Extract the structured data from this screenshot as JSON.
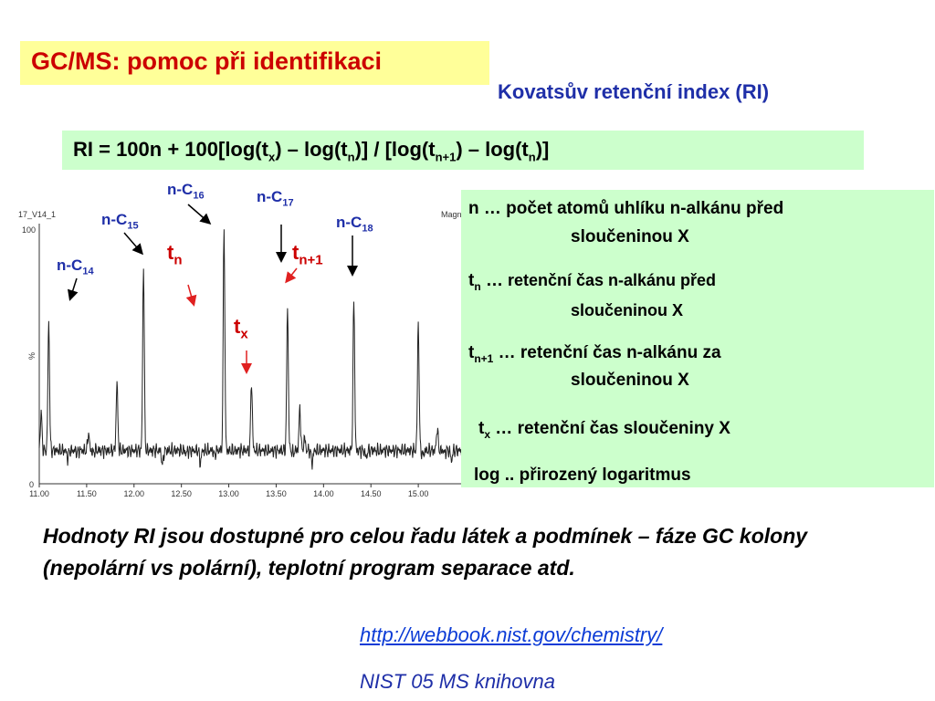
{
  "title": "GC/MS: pomoc při identifikaci",
  "subtitle": "Kovatsův retenční index (RI)",
  "formula": {
    "p1": "RI = 100n + 100[log(t",
    "s1": "x",
    "p2": ") – log(t",
    "s2": "n",
    "p3": ")] / [log(t",
    "s3": "n+1",
    "p4": ") – log(t",
    "s4": "n",
    "p5": ")]"
  },
  "legend": {
    "n_line1": "n … počet atomů uhlíku n-alkánu před",
    "n_line2": "sloučeninou X",
    "tn_t": "t",
    "tn_sub": "n",
    "tn_dots": " …",
    "tn_line1": " retenční čas  n-alkánu před",
    "tn_line2": "sloučeninou X",
    "tn1_t": "t",
    "tn1_sub": "n+1",
    "tn1_line1": " … retenční čas  n-alkánu za",
    "tn1_line2": "sloučeninou X",
    "tx_t": "t",
    "tx_sub": "x",
    "tx_line": " … retenční čas  sloučeniny X",
    "log_line": "log .. přirozený logaritmus"
  },
  "labels": {
    "c14": {
      "p": "n-C",
      "s": "14"
    },
    "c15": {
      "p": "n-C",
      "s": "15"
    },
    "c16": {
      "p": "n-C",
      "s": "16"
    },
    "c17": {
      "p": "n-C",
      "s": "17"
    },
    "c18": {
      "p": "n-C",
      "s": "18"
    },
    "tn": {
      "p": "t",
      "s": "n"
    },
    "tn1": {
      "p": "t",
      "s": "n+1"
    },
    "tx": {
      "p": "t",
      "s": "x"
    }
  },
  "chart_data": {
    "type": "line",
    "title": "17_V14_1",
    "corner_label": "Magn",
    "ylabel": "%",
    "xlim": [
      11.0,
      15.5
    ],
    "ylim": [
      0,
      100
    ],
    "y_ticks": [
      "100",
      "0"
    ],
    "x_ticks": [
      "11.00",
      "11.50",
      "12.00",
      "12.50",
      "13.00",
      "13.50",
      "14.00",
      "14.50",
      "15.00"
    ],
    "baseline": 13,
    "peaks": [
      {
        "x": 11.02,
        "h": 28
      },
      {
        "x": 11.1,
        "h": 64
      },
      {
        "x": 11.3,
        "h": 10
      },
      {
        "x": 11.4,
        "h": 12
      },
      {
        "x": 11.52,
        "h": 20
      },
      {
        "x": 11.57,
        "h": 12
      },
      {
        "x": 11.82,
        "h": 40
      },
      {
        "x": 12.1,
        "h": 85
      },
      {
        "x": 12.3,
        "h": 7
      },
      {
        "x": 12.55,
        "h": 12
      },
      {
        "x": 12.7,
        "h": 8
      },
      {
        "x": 12.85,
        "h": 11
      },
      {
        "x": 12.95,
        "h": 100
      },
      {
        "x": 13.24,
        "h": 40
      },
      {
        "x": 13.62,
        "h": 70
      },
      {
        "x": 13.68,
        "h": 12
      },
      {
        "x": 13.75,
        "h": 30
      },
      {
        "x": 13.8,
        "h": 18
      },
      {
        "x": 13.88,
        "h": 8
      },
      {
        "x": 14.32,
        "h": 72
      },
      {
        "x": 14.45,
        "h": 10
      },
      {
        "x": 15.0,
        "h": 64
      },
      {
        "x": 15.05,
        "h": 11
      },
      {
        "x": 15.2,
        "h": 22
      },
      {
        "x": 15.28,
        "h": 12
      },
      {
        "x": 15.35,
        "h": 9
      }
    ]
  },
  "bottom_text": "Hodnoty RI jsou dostupné pro celou řadu látek a podmínek – fáze GC kolony (nepolární vs polární), teplotní program separace atd.",
  "link": "http://webbook.nist.gov/chemistry/",
  "nist": "NIST 05 MS knihovna"
}
